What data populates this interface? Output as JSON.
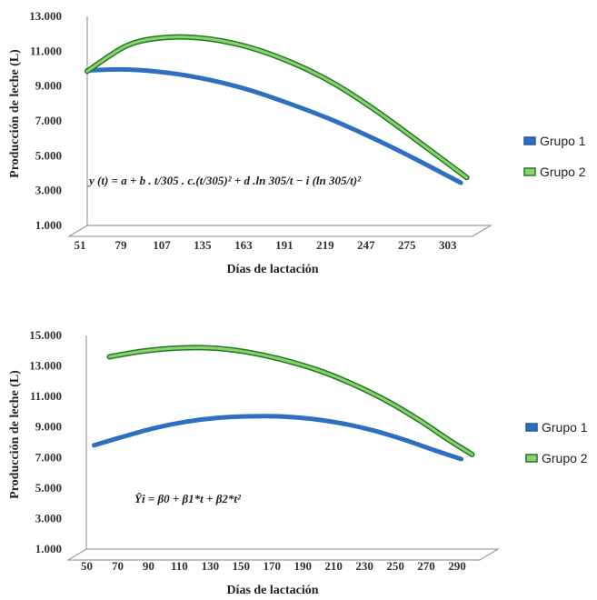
{
  "chart_data": [
    {
      "type": "line",
      "xlabel": "Días de lactación",
      "ylabel": "Producción de leche (L)",
      "x_ticks": [
        "51",
        "79",
        "107",
        "135",
        "163",
        "191",
        "219",
        "247",
        "275",
        "303"
      ],
      "y_ticks": [
        "1.000",
        "3.000",
        "5.000",
        "7.000",
        "9.000",
        "11.000",
        "13.000"
      ],
      "xlim": [
        51,
        315
      ],
      "ylim": [
        1000,
        13000
      ],
      "grid": false,
      "legend_position": "right",
      "formula": "y (t) = a + b . t/305 . c.(t/305)² + d .ln 305/t − i (ln 305/t)²",
      "series": [
        {
          "name": "Grupo 1",
          "color": "#2f6fbf",
          "x": [
            51,
            79,
            107,
            135,
            163,
            191,
            219,
            247,
            275,
            307
          ],
          "y": [
            9900,
            9950,
            9750,
            9350,
            8750,
            7950,
            7050,
            6000,
            4850,
            3450
          ]
        },
        {
          "name": "Grupo 2",
          "color": "#2e9a3c",
          "x": [
            51,
            79,
            107,
            135,
            163,
            191,
            219,
            247,
            275,
            311
          ],
          "y": [
            9850,
            11350,
            11800,
            11700,
            11200,
            10350,
            9200,
            7700,
            6000,
            3750
          ]
        }
      ]
    },
    {
      "type": "line",
      "xlabel": "Días de lactación",
      "ylabel": "Producción de leche (L)",
      "x_ticks": [
        "50",
        "70",
        "90",
        "110",
        "130",
        "150",
        "170",
        "190",
        "210",
        "230",
        "250",
        "270",
        "290"
      ],
      "y_ticks": [
        "1.000",
        "3.000",
        "5.000",
        "7.000",
        "9.000",
        "11.000",
        "13.000",
        "15.000"
      ],
      "xlim": [
        45,
        300
      ],
      "ylim": [
        1000,
        15000
      ],
      "grid": false,
      "legend_position": "right",
      "formula": "Ŷi = β0 + β1*t + β2*t²",
      "series": [
        {
          "name": "Grupo 1",
          "color": "#2f6fbf",
          "x": [
            50,
            70,
            90,
            110,
            130,
            150,
            170,
            190,
            210,
            230,
            250,
            270,
            288
          ],
          "y": [
            7800,
            8400,
            8950,
            9350,
            9600,
            9700,
            9700,
            9550,
            9250,
            8800,
            8200,
            7500,
            6900
          ]
        },
        {
          "name": "Grupo 2",
          "color": "#2e9a3c",
          "x": [
            60,
            80,
            100,
            120,
            140,
            160,
            180,
            200,
            220,
            240,
            260,
            280,
            295
          ],
          "y": [
            13600,
            13950,
            14150,
            14200,
            14050,
            13700,
            13200,
            12550,
            11700,
            10700,
            9500,
            8150,
            7200
          ]
        }
      ]
    }
  ]
}
